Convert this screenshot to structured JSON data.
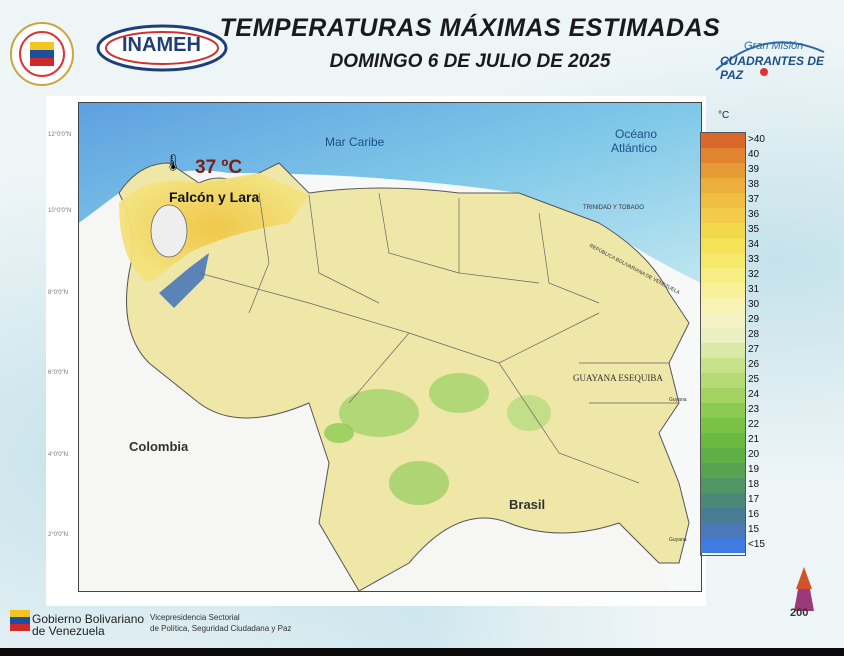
{
  "header": {
    "title": "TEMPERATURAS MÁXIMAS ESTIMADAS",
    "subtitle": "DOMINGO 6 DE JULIO DE 2025"
  },
  "logos": {
    "inameh": "INAMEH",
    "gran_mision_1": "Gran Misión",
    "gran_mision_2": "CUADRANTES DE PAZ"
  },
  "map": {
    "highlight_temp": "37 ºC",
    "highlight_region": "Falcón y Lara",
    "labels": {
      "sea": "Mar Caribe",
      "ocean_1": "Océano",
      "ocean_2": "Atlántico",
      "colombia": "Colombia",
      "brasil": "Brasil",
      "guayana": "GUAYANA ESEQUIBA",
      "trinidad": "TRINIDAD Y TOBAGO",
      "limite": "REPÚBLICA BOLIVARIANA DE VENEZUELA",
      "guyana_1": "Guyana",
      "guyana_2": "Guyana"
    },
    "lat_ticks": [
      "12°0'0\"N",
      "10°0'0\"N",
      "8°0'0\"N",
      "6°0'0\"N",
      "4°0'0\"N",
      "2°0'0\"N"
    ]
  },
  "legend": {
    "unit": "°C",
    "labels": [
      ">40",
      "40",
      "39",
      "38",
      "37",
      "36",
      "35",
      "34",
      "33",
      "32",
      "31",
      "30",
      "29",
      "28",
      "27",
      "26",
      "25",
      "24",
      "23",
      "22",
      "21",
      "20",
      "19",
      "18",
      "17",
      "16",
      "15",
      "<15"
    ],
    "colors": [
      "#d8692a",
      "#e0842f",
      "#e69a35",
      "#ecae3c",
      "#efbf43",
      "#f2cc48",
      "#f4d84c",
      "#f5e257",
      "#f6e86a",
      "#f7ed82",
      "#f8f19a",
      "#f8f3b2",
      "#f5f3c5",
      "#eaf0c1",
      "#daeaa6",
      "#c8e28c",
      "#b5da76",
      "#a1d262",
      "#8dca52",
      "#7ac245",
      "#6ab83f",
      "#5fae46",
      "#57a352",
      "#509664",
      "#4b887a",
      "#4a7b94",
      "#4a78b9",
      "#3f7ce0"
    ]
  },
  "footer": {
    "gob_1": "Gobierno Bolivariano",
    "gob_2": "de Venezuela",
    "vice_1": "Vicepresidencia Sectorial",
    "vice_2": "de Política, Seguridad Ciudadana y Paz",
    "anniv": "200"
  }
}
